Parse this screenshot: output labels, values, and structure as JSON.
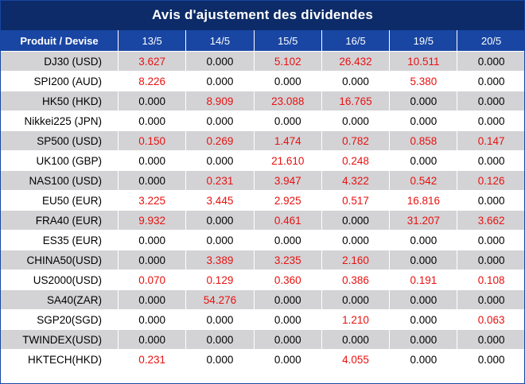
{
  "title": "Avis d'ajustement des dividendes",
  "header": {
    "product_label": "Produit / Devise",
    "dates": [
      "13/5",
      "14/5",
      "15/5",
      "16/5",
      "19/5",
      "20/5"
    ]
  },
  "colors": {
    "title_bg": "#0c2b68",
    "header_bg": "#1946a3",
    "alt_row": "#d3d3d6",
    "nonzero": "#e8110f"
  },
  "rows": [
    {
      "name": "DJ30 (USD)",
      "values": [
        "3.627",
        "0.000",
        "5.102",
        "26.432",
        "10.511",
        "0.000"
      ]
    },
    {
      "name": "SPI200 (AUD)",
      "values": [
        "8.226",
        "0.000",
        "0.000",
        "0.000",
        "5.380",
        "0.000"
      ]
    },
    {
      "name": "HK50 (HKD)",
      "values": [
        "0.000",
        "8.909",
        "23.088",
        "16.765",
        "0.000",
        "0.000"
      ]
    },
    {
      "name": "Nikkei225 (JPN)",
      "values": [
        "0.000",
        "0.000",
        "0.000",
        "0.000",
        "0.000",
        "0.000"
      ]
    },
    {
      "name": "SP500 (USD)",
      "values": [
        "0.150",
        "0.269",
        "1.474",
        "0.782",
        "0.858",
        "0.147"
      ]
    },
    {
      "name": "UK100 (GBP)",
      "values": [
        "0.000",
        "0.000",
        "21.610",
        "0.248",
        "0.000",
        "0.000"
      ]
    },
    {
      "name": "NAS100 (USD)",
      "values": [
        "0.000",
        "0.231",
        "3.947",
        "4.322",
        "0.542",
        "0.126"
      ]
    },
    {
      "name": "EU50 (EUR)",
      "values": [
        "3.225",
        "3.445",
        "2.925",
        "0.517",
        "16.816",
        "0.000"
      ]
    },
    {
      "name": "FRA40 (EUR)",
      "values": [
        "9.932",
        "0.000",
        "0.461",
        "0.000",
        "31.207",
        "3.662"
      ]
    },
    {
      "name": "ES35 (EUR)",
      "values": [
        "0.000",
        "0.000",
        "0.000",
        "0.000",
        "0.000",
        "0.000"
      ]
    },
    {
      "name": "CHINA50(USD)",
      "values": [
        "0.000",
        "3.389",
        "3.235",
        "2.160",
        "0.000",
        "0.000"
      ]
    },
    {
      "name": "US2000(USD)",
      "values": [
        "0.070",
        "0.129",
        "0.360",
        "0.386",
        "0.191",
        "0.108"
      ]
    },
    {
      "name": "SA40(ZAR)",
      "values": [
        "0.000",
        "54.276",
        "0.000",
        "0.000",
        "0.000",
        "0.000"
      ]
    },
    {
      "name": "SGP20(SGD)",
      "values": [
        "0.000",
        "0.000",
        "0.000",
        "1.210",
        "0.000",
        "0.063"
      ]
    },
    {
      "name": "TWINDEX(USD)",
      "values": [
        "0.000",
        "0.000",
        "0.000",
        "0.000",
        "0.000",
        "0.000"
      ]
    },
    {
      "name": "HKTECH(HKD)",
      "values": [
        "0.231",
        "0.000",
        "0.000",
        "4.055",
        "0.000",
        "0.000"
      ]
    }
  ]
}
